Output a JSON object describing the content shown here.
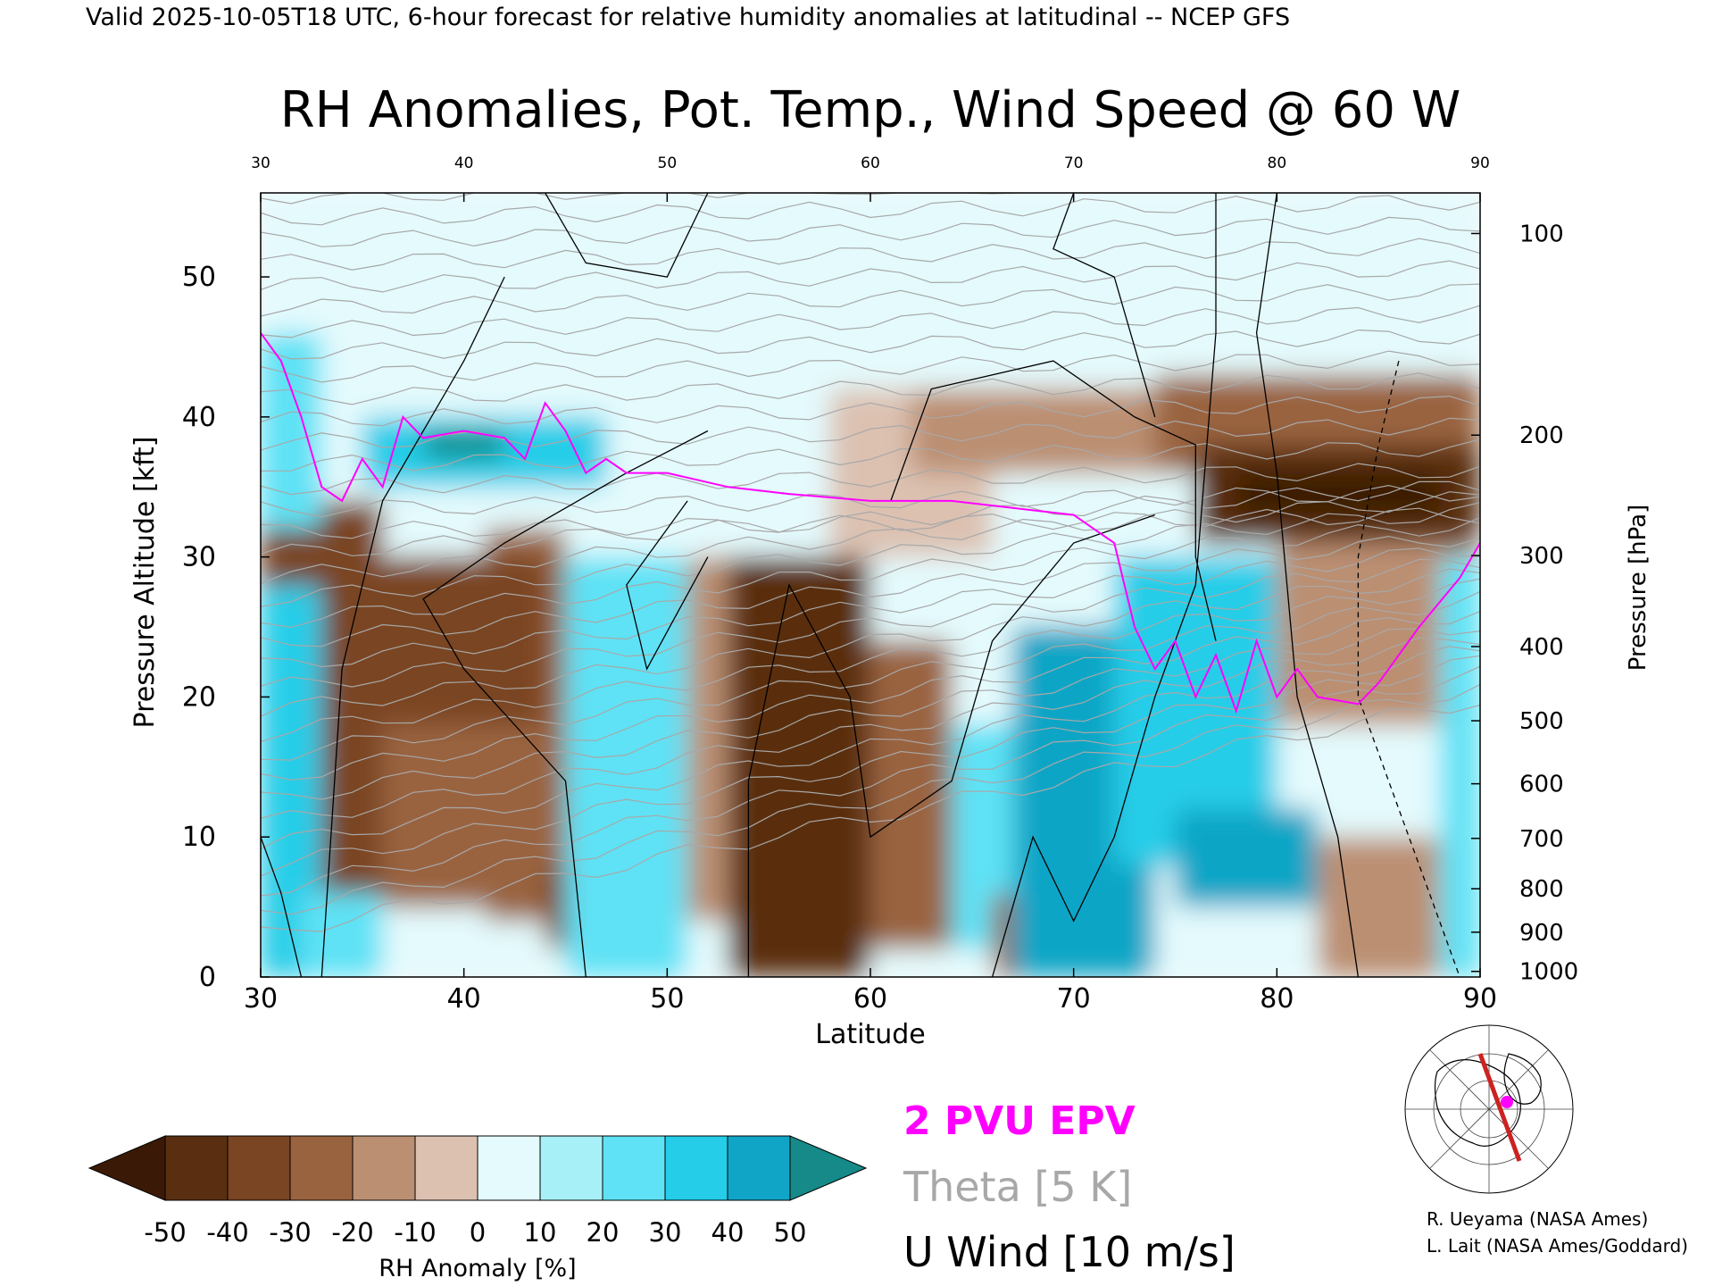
{
  "header": "Valid 2025-10-05T18 UTC, 6-hour forecast for relative humidity anomalies at latitudinal -- NCEP GFS",
  "chart_data": {
    "type": "heatmap",
    "title": "RH Anomalies, Pot. Temp., Wind Speed @ 60 W",
    "xlabel": "Latitude",
    "ylabel": "Pressure Altitude [kft]",
    "y2label": "Pressure [hPa]",
    "xlim": [
      30,
      90
    ],
    "ylim": [
      0,
      56
    ],
    "x_ticks": [
      "30",
      "40",
      "50",
      "60",
      "70",
      "80",
      "90"
    ],
    "y_ticks": [
      "0",
      "10",
      "20",
      "30",
      "40",
      "50"
    ],
    "pressure_ticks": [
      {
        "label": "100",
        "kft": 53.1
      },
      {
        "label": "200",
        "kft": 38.7
      },
      {
        "label": "300",
        "kft": 30.1
      },
      {
        "label": "400",
        "kft": 23.6
      },
      {
        "label": "500",
        "kft": 18.3
      },
      {
        "label": "600",
        "kft": 13.8
      },
      {
        "label": "700",
        "kft": 9.9
      },
      {
        "label": "800",
        "kft": 6.3
      },
      {
        "label": "900",
        "kft": 3.2
      },
      {
        "label": "1000",
        "kft": 0.4
      }
    ],
    "colorbar": {
      "label": "RH Anomaly [%]",
      "ticks": [
        "-50",
        "-40",
        "-30",
        "-20",
        "-10",
        "0",
        "10",
        "20",
        "30",
        "40",
        "50"
      ],
      "colors": [
        "#3a1a06",
        "#5a2e10",
        "#7a4522",
        "#9a6340",
        "#bb8f72",
        "#dcc1b1",
        "#e4fafd",
        "#a8f0f8",
        "#5fe2f5",
        "#25cde8",
        "#10a5c6",
        "#158a88"
      ]
    },
    "field_description": [
      {
        "region": "stratosphere cap",
        "anomaly": 0
      },
      {
        "region": "lat 30-36, 0-34 kft",
        "anomaly": -40
      },
      {
        "region": "lat 53-60, 0-30 kft",
        "anomaly": -45
      },
      {
        "region": "lat 67-74, 0-25 kft",
        "anomaly": 45
      },
      {
        "region": "lat 78-88, 33-36 kft",
        "anomaly": -50
      }
    ],
    "theta_contours": [
      "280",
      "290",
      "300",
      "310",
      "320",
      "330",
      "340",
      "360",
      "370",
      "380",
      "390",
      "400",
      "410",
      "420"
    ],
    "wind_contours": [
      "0",
      "10",
      "30"
    ],
    "pv_line_2pvu": [
      [
        30,
        46
      ],
      [
        31,
        44
      ],
      [
        32,
        40
      ],
      [
        33,
        35
      ],
      [
        34,
        34
      ],
      [
        35,
        37
      ],
      [
        36,
        35
      ],
      [
        37,
        40
      ],
      [
        38,
        38.5
      ],
      [
        40,
        39
      ],
      [
        42,
        38.5
      ],
      [
        43,
        37
      ],
      [
        44,
        41
      ],
      [
        45,
        39
      ],
      [
        46,
        36
      ],
      [
        47,
        37
      ],
      [
        48,
        36
      ],
      [
        50,
        36
      ],
      [
        53,
        35
      ],
      [
        56,
        34.5
      ],
      [
        60,
        34
      ],
      [
        64,
        34
      ],
      [
        67,
        33.5
      ],
      [
        70,
        33
      ],
      [
        72,
        31
      ],
      [
        73,
        25
      ],
      [
        74,
        22
      ],
      [
        75,
        24
      ],
      [
        76,
        20
      ],
      [
        77,
        23
      ],
      [
        78,
        19
      ],
      [
        79,
        24
      ],
      [
        80,
        20
      ],
      [
        81,
        22
      ],
      [
        82,
        20
      ],
      [
        84,
        19.5
      ],
      [
        85,
        21
      ],
      [
        87,
        25
      ],
      [
        89,
        28.5
      ],
      [
        90,
        31
      ]
    ],
    "legend": [
      {
        "label": "2 PVU EPV",
        "color": "#ff00ff"
      },
      {
        "label": "Theta [5 K]",
        "color": "#a8a8a8"
      },
      {
        "label": "U Wind [10 m/s]",
        "color": "#000000"
      }
    ]
  },
  "credits": [
    "R. Ueyama (NASA Ames)",
    "L. Lait (NASA Ames/Goddard)"
  ],
  "colors": {
    "pv": "#ff00ff",
    "theta": "#a8a8a8",
    "wind": "#000000",
    "section_line": "#cc2222",
    "marker": "#ff00ff"
  }
}
